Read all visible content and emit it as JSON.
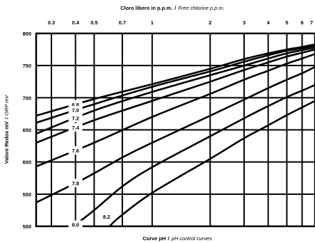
{
  "chart_data": {
    "type": "line",
    "title": {
      "main": "Cloro libero  in  p.p.m.",
      "sep": "/",
      "translation": "Free  chlorine  p.p.m."
    },
    "xlabel": {
      "main": "Curve   pH",
      "sep": "/",
      "translation": "pH  control  curves"
    },
    "ylabel": {
      "main": "Valore  Redox   mV",
      "sep": "/",
      "translation": "ORP  mV"
    },
    "x_scale": "log",
    "xlim": [
      0.25,
      7.0
    ],
    "ylim": [
      500,
      800
    ],
    "x_ticks": [
      0.3,
      0.4,
      0.5,
      0.7,
      1,
      2,
      3,
      4,
      5,
      6,
      7
    ],
    "x_tick_labels": [
      "0.3",
      "0.4",
      "0.5",
      "0.7",
      "1",
      "2",
      "3",
      "4",
      "5",
      "6",
      "7"
    ],
    "y_ticks": [
      500,
      550,
      600,
      650,
      700,
      750,
      800
    ],
    "y_tick_labels": [
      "500",
      "550",
      "600",
      "650",
      "700",
      "750",
      "800"
    ],
    "grid": true,
    "series": [
      {
        "name": "6.8",
        "points": [
          [
            0.25,
            672
          ],
          [
            0.5,
            698
          ],
          [
            1,
            721
          ],
          [
            2,
            745
          ],
          [
            3,
            760
          ],
          [
            4,
            769
          ],
          [
            5,
            775
          ],
          [
            6,
            779
          ],
          [
            7,
            783
          ]
        ]
      },
      {
        "name": "7.0",
        "points": [
          [
            0.25,
            661
          ],
          [
            0.5,
            690
          ],
          [
            1,
            717
          ],
          [
            2,
            741
          ],
          [
            3,
            756
          ],
          [
            4,
            766
          ],
          [
            5,
            773
          ],
          [
            6,
            777
          ],
          [
            7,
            781
          ]
        ]
      },
      {
        "name": "7.2",
        "points": [
          [
            0.25,
            644
          ],
          [
            0.5,
            680
          ],
          [
            1,
            709
          ],
          [
            2,
            735
          ],
          [
            3,
            750
          ],
          [
            4,
            761
          ],
          [
            5,
            769
          ],
          [
            6,
            774
          ],
          [
            7,
            778
          ]
        ]
      },
      {
        "name": "7.4",
        "points": [
          [
            0.25,
            630
          ],
          [
            0.5,
            665
          ],
          [
            1,
            695
          ],
          [
            2,
            725
          ],
          [
            3,
            743
          ],
          [
            4,
            755
          ],
          [
            5,
            764
          ],
          [
            6,
            770
          ],
          [
            7,
            775
          ]
        ]
      },
      {
        "name": "7.6",
        "points": [
          [
            0.25,
            593
          ],
          [
            0.5,
            630
          ],
          [
            1,
            670
          ],
          [
            2,
            706
          ],
          [
            3,
            728
          ],
          [
            4,
            742
          ],
          [
            5,
            753
          ],
          [
            6,
            761
          ],
          [
            7,
            768
          ]
        ]
      },
      {
        "name": "7.8",
        "points": [
          [
            0.25,
            537
          ],
          [
            0.45,
            575
          ],
          [
            0.7,
            607
          ],
          [
            1,
            630
          ],
          [
            2,
            672
          ],
          [
            3,
            697
          ],
          [
            4,
            715
          ],
          [
            5,
            728
          ],
          [
            6,
            738
          ],
          [
            7,
            748
          ]
        ]
      },
      {
        "name": "8.0",
        "points": [
          [
            0.39,
            500
          ],
          [
            0.5,
            525
          ],
          [
            0.7,
            562
          ],
          [
            1,
            592
          ],
          [
            2,
            640
          ],
          [
            3,
            668
          ],
          [
            4,
            687
          ],
          [
            5,
            701
          ],
          [
            6,
            711
          ],
          [
            7,
            720
          ]
        ]
      },
      {
        "name": "8.2",
        "points": [
          [
            0.6,
            500
          ],
          [
            0.7,
            518
          ],
          [
            1,
            552
          ],
          [
            2,
            605
          ],
          [
            3,
            637
          ],
          [
            4,
            657
          ],
          [
            5,
            673
          ],
          [
            6,
            685
          ],
          [
            7,
            695
          ]
        ]
      }
    ]
  }
}
